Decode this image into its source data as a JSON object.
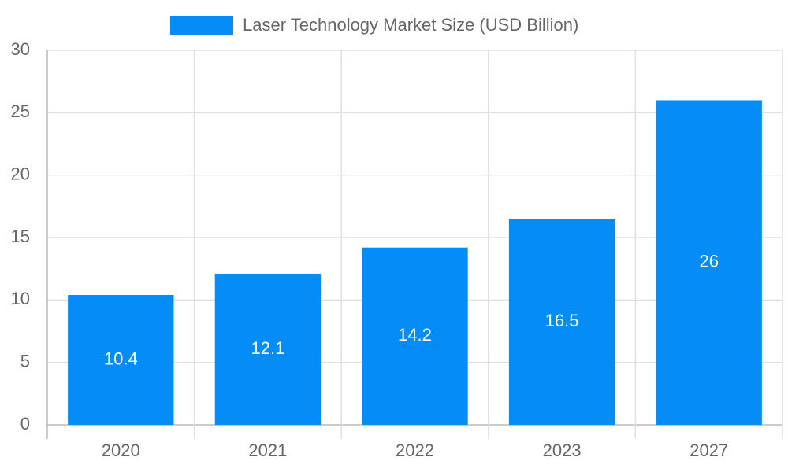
{
  "chart_data": {
    "type": "bar",
    "categories": [
      "2020",
      "2021",
      "2022",
      "2023",
      "2027"
    ],
    "series": [
      {
        "name": "Laser Technology Market Size (USD Billion)",
        "color": "#058cf7",
        "values": [
          10.4,
          12.1,
          14.2,
          16.5,
          26
        ]
      }
    ],
    "ylim": [
      0,
      30
    ],
    "yticks": [
      0,
      5,
      10,
      15,
      20,
      25,
      30
    ],
    "grid": true,
    "legend": "top"
  }
}
